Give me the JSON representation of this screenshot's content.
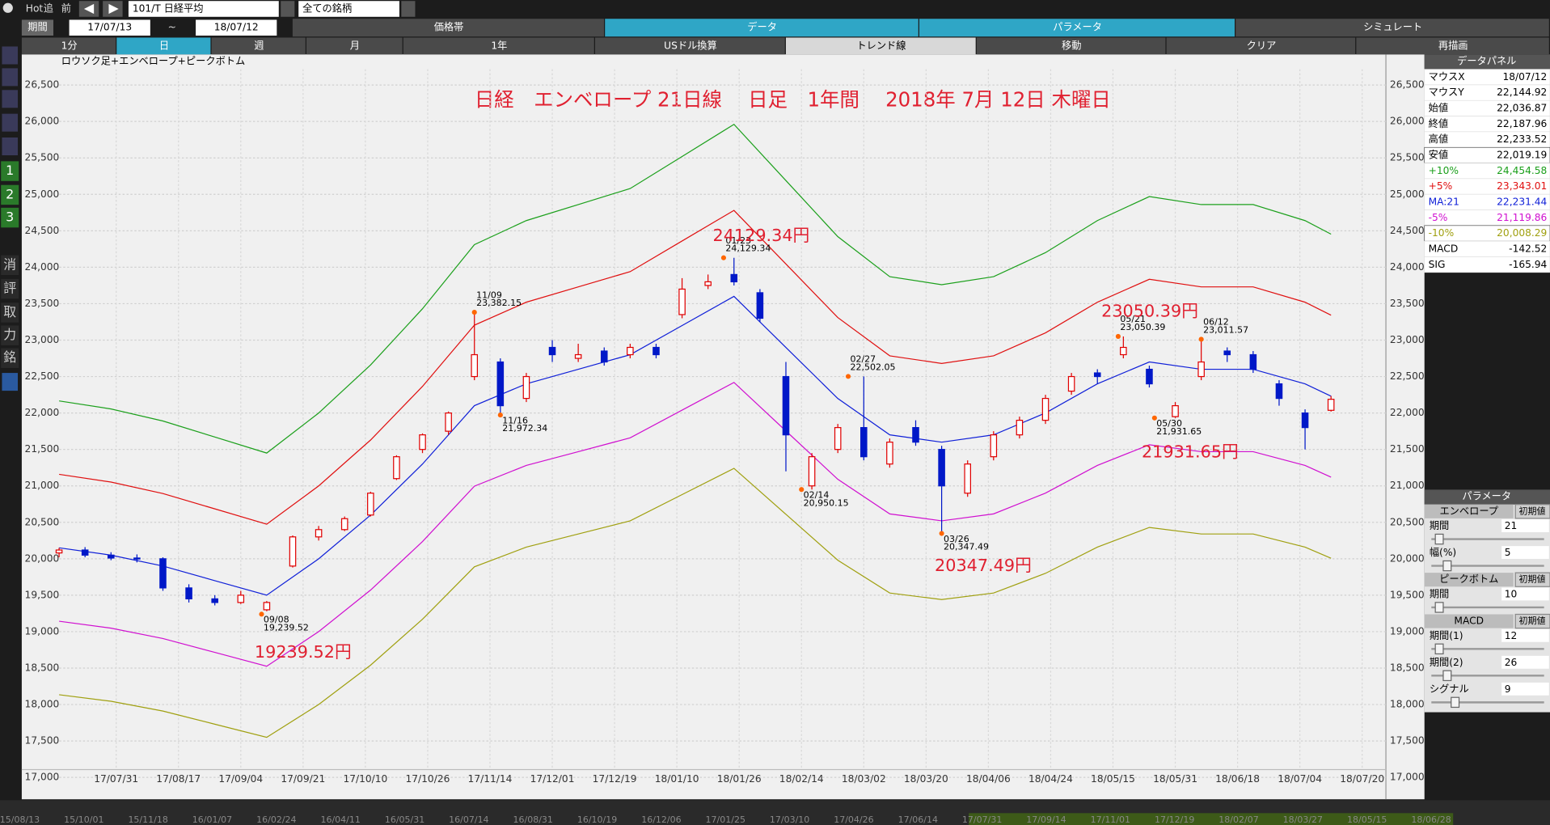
{
  "toolbar": {
    "hot": "Hot",
    "add": "追",
    "prev": "前",
    "code": "101/T 日経平均",
    "universe": "全ての銘柄",
    "period_label": "期間",
    "from": "17/07/13",
    "tilde": "~",
    "to": "18/07/12",
    "tabs": [
      "価格帯",
      "データ",
      "パラメータ",
      "シミュレート"
    ],
    "buttons": [
      "1分",
      "日",
      "週",
      "月",
      "1年",
      "USドル換算",
      "トレンド線",
      "移動",
      "クリア",
      "再描画"
    ]
  },
  "sidebar": [
    "1",
    "2",
    "3",
    "消",
    "評",
    "取",
    "力",
    "銘"
  ],
  "data_panel": {
    "title": "データパネル",
    "rows": [
      [
        "マウスX",
        "18/07/12"
      ],
      [
        "マウスY",
        "22,144.92"
      ],
      [
        "始値",
        "22,036.87"
      ],
      [
        "終値",
        "22,187.96"
      ],
      [
        "高値",
        "22,233.52"
      ],
      [
        "安値",
        "22,019.19"
      ],
      [
        "+10%",
        "24,454.58"
      ],
      [
        "+5%",
        "23,343.01"
      ],
      [
        "MA:21",
        "22,231.44"
      ],
      [
        "-5%",
        "21,119.86"
      ],
      [
        "-10%",
        "20,008.29"
      ],
      [
        "MACD",
        "-142.52"
      ],
      [
        "SIG",
        "-165.94"
      ]
    ]
  },
  "param_panel": {
    "title": "パラメータ",
    "sections": [
      {
        "name": "エンベロープ",
        "reset": "初期値",
        "params": [
          [
            "期間",
            "21"
          ],
          [
            "幅(%)",
            "5"
          ]
        ]
      },
      {
        "name": "ピークボトム",
        "reset": "初期値",
        "params": [
          [
            "期間",
            "10"
          ]
        ]
      },
      {
        "name": "MACD",
        "reset": "初期値",
        "params": [
          [
            "期間(1)",
            "12"
          ],
          [
            "期間(2)",
            "26"
          ],
          [
            "シグナル",
            "9"
          ]
        ]
      }
    ]
  },
  "navigator": {
    "dates": [
      "15/08/13",
      "15/10/01",
      "15/11/18",
      "16/01/07",
      "16/02/24",
      "16/04/11",
      "16/05/31",
      "16/07/14",
      "16/08/31",
      "16/10/19",
      "16/12/06",
      "17/01/25",
      "17/03/10",
      "17/04/26",
      "17/06/14",
      "17/07/31",
      "17/09/14",
      "17/11/01",
      "17/12/19",
      "18/02/07",
      "18/03/27",
      "18/05/15",
      "18/06/28"
    ]
  },
  "chart_data": {
    "type": "candlestick",
    "title": "日経　エンベロープ 21日線　 日足　1年間　 2018年 7月 12日 木曜日",
    "subtitle": "ロウソク足+エンベロープ+ピークボトム",
    "xlim": [
      -7,
      255
    ],
    "xticks": [
      {
        "value": 11,
        "label": "17/07/31"
      },
      {
        "value": 23,
        "label": "17/08/17"
      },
      {
        "value": 35,
        "label": "17/09/04"
      },
      {
        "value": 47,
        "label": "17/09/21"
      },
      {
        "value": 59,
        "label": "17/10/10"
      },
      {
        "value": 71,
        "label": "17/10/26"
      },
      {
        "value": 83,
        "label": "17/11/14"
      },
      {
        "value": 95,
        "label": "17/12/01"
      },
      {
        "value": 107,
        "label": "17/12/19"
      },
      {
        "value": 119,
        "label": "18/01/10"
      },
      {
        "value": 131,
        "label": "18/01/26"
      },
      {
        "value": 143,
        "label": "18/02/14"
      },
      {
        "value": 155,
        "label": "18/03/02"
      },
      {
        "value": 167,
        "label": "18/03/20"
      },
      {
        "value": 179,
        "label": "18/04/06"
      },
      {
        "value": 191,
        "label": "18/04/24"
      },
      {
        "value": 203,
        "label": "18/05/15"
      },
      {
        "value": 215,
        "label": "18/05/31"
      },
      {
        "value": 227,
        "label": "18/06/18"
      },
      {
        "value": 239,
        "label": "18/07/04"
      },
      {
        "value": 251,
        "label": "18/07/20"
      }
    ],
    "ylim": [
      16700,
      26920
    ],
    "yticks": [
      {
        "value": 17000,
        "label": "17,000"
      },
      {
        "value": 17500,
        "label": "17,500"
      },
      {
        "value": 18000,
        "label": "18,000"
      },
      {
        "value": 18500,
        "label": "18,500"
      },
      {
        "value": 19000,
        "label": "19,000"
      },
      {
        "value": 19500,
        "label": "19,500"
      },
      {
        "value": 20000,
        "label": "20,000"
      },
      {
        "value": 20500,
        "label": "20,500"
      },
      {
        "value": 21000,
        "label": "21,000"
      },
      {
        "value": 21500,
        "label": "21,500"
      },
      {
        "value": 22000,
        "label": "22,000"
      },
      {
        "value": 22500,
        "label": "22,500"
      },
      {
        "value": 23000,
        "label": "23,000"
      },
      {
        "value": 23500,
        "label": "23,500"
      },
      {
        "value": 24000,
        "label": "24,000"
      },
      {
        "value": 24500,
        "label": "24,500"
      },
      {
        "value": 25000,
        "label": "25,000"
      },
      {
        "value": 25500,
        "label": "25,500"
      },
      {
        "value": 26000,
        "label": "26,000"
      },
      {
        "value": 26500,
        "label": "26,500"
      }
    ],
    "grid": true,
    "up_color": "#e00000",
    "down_color": "#0018c8",
    "candle_x": [
      0,
      5,
      10,
      15,
      20,
      25,
      30,
      35,
      40,
      45,
      50,
      55,
      60,
      65,
      70,
      75,
      80,
      85,
      90,
      95,
      100,
      105,
      110,
      115,
      120,
      125,
      130,
      135,
      140,
      145,
      150,
      155,
      160,
      165,
      170,
      175,
      180,
      185,
      190,
      195,
      200,
      205,
      210,
      215,
      220,
      225,
      230,
      235,
      240,
      245
    ],
    "ohlc": [
      [
        20080,
        20150,
        20020,
        20120
      ],
      [
        20120,
        20160,
        20020,
        20050
      ],
      [
        20050,
        20090,
        19980,
        20010
      ],
      [
        20010,
        20060,
        19950,
        20000
      ],
      [
        20000,
        20020,
        19560,
        19600
      ],
      [
        19600,
        19650,
        19400,
        19450
      ],
      [
        19450,
        19500,
        19360,
        19400
      ],
      [
        19400,
        19560,
        19380,
        19500
      ],
      [
        19300,
        19420,
        19280,
        19400
      ],
      [
        19900,
        20320,
        19880,
        20300
      ],
      [
        20300,
        20450,
        20250,
        20400
      ],
      [
        20400,
        20580,
        20380,
        20550
      ],
      [
        20600,
        20920,
        20580,
        20900
      ],
      [
        21100,
        21420,
        21080,
        21400
      ],
      [
        21500,
        21720,
        21450,
        21700
      ],
      [
        21750,
        22020,
        21700,
        22000
      ],
      [
        22500,
        23382.15,
        22450,
        22800
      ],
      [
        22700,
        22750,
        21972.34,
        22100
      ],
      [
        22200,
        22550,
        22150,
        22500
      ],
      [
        22900,
        23000,
        22700,
        22800
      ],
      [
        22750,
        22950,
        22700,
        22800
      ],
      [
        22850,
        22900,
        22650,
        22700
      ],
      [
        22800,
        22950,
        22750,
        22900
      ],
      [
        22900,
        22950,
        22750,
        22800
      ],
      [
        23350,
        23850,
        23300,
        23700
      ],
      [
        23750,
        23900,
        23700,
        23800
      ],
      [
        23900,
        24129.34,
        23750,
        23800
      ],
      [
        23650,
        23700,
        23250,
        23300
      ],
      [
        22500,
        22700,
        21200,
        21700
      ],
      [
        21000,
        21450,
        20950.15,
        21400
      ],
      [
        21500,
        21850,
        21450,
        21800
      ],
      [
        21800,
        22502.05,
        21350,
        21400
      ],
      [
        21300,
        21650,
        21250,
        21600
      ],
      [
        21800,
        21900,
        21550,
        21600
      ],
      [
        21500,
        21550,
        20347.49,
        21000
      ],
      [
        20900,
        21350,
        20850,
        21300
      ],
      [
        21400,
        21750,
        21350,
        21700
      ],
      [
        21700,
        21950,
        21650,
        21900
      ],
      [
        21900,
        22250,
        21850,
        22200
      ],
      [
        22300,
        22550,
        22250,
        22500
      ],
      [
        22550,
        22600,
        22400,
        22500
      ],
      [
        22800,
        23050.39,
        22750,
        22900
      ],
      [
        22600,
        22650,
        22350,
        22400
      ],
      [
        21950,
        22150,
        21931.65,
        22100
      ],
      [
        22500,
        23011.57,
        22450,
        22700
      ],
      [
        22850,
        22900,
        22700,
        22800
      ],
      [
        22800,
        22850,
        22550,
        22600
      ],
      [
        22400,
        22450,
        22100,
        22200
      ],
      [
        22000,
        22050,
        21500,
        21800
      ],
      [
        22036.87,
        22233.52,
        22019.19,
        22187.96
      ]
    ],
    "line_x": [
      0,
      10,
      20,
      30,
      40,
      50,
      60,
      70,
      80,
      90,
      100,
      110,
      120,
      130,
      140,
      150,
      160,
      170,
      180,
      190,
      200,
      210,
      220,
      230,
      240,
      245
    ],
    "lines": [
      {
        "color": "#1ca01c",
        "values": [
          22165,
          22055,
          21890,
          21670,
          21450,
          22000,
          22660,
          23430,
          24310,
          24640,
          24860,
          25080,
          25520,
          25960,
          25190,
          24420,
          23870,
          23760,
          23870,
          24200,
          24640,
          24970,
          24860,
          24860,
          24640,
          24454
        ]
      },
      {
        "color": "#e01010",
        "values": [
          21158,
          21053,
          20895,
          20685,
          20475,
          21000,
          21630,
          22365,
          23205,
          23520,
          23730,
          23940,
          24360,
          24780,
          24045,
          23310,
          22785,
          22680,
          22785,
          23100,
          23520,
          23835,
          23730,
          23730,
          23520,
          23343
        ]
      },
      {
        "color": "#1020d8",
        "values": [
          20150,
          20050,
          19900,
          19700,
          19500,
          20000,
          20600,
          21300,
          22100,
          22400,
          22600,
          22800,
          23200,
          23600,
          22900,
          22200,
          21700,
          21600,
          21700,
          22000,
          22400,
          22700,
          22600,
          22600,
          22400,
          22231
        ]
      },
      {
        "color": "#d010d0",
        "values": [
          19143,
          19048,
          18905,
          18715,
          18525,
          19000,
          19570,
          20235,
          20995,
          21280,
          21470,
          21660,
          22040,
          22420,
          21755,
          21090,
          20615,
          20520,
          20615,
          20900,
          21280,
          21565,
          21470,
          21470,
          21280,
          21119
        ]
      },
      {
        "color": "#a0a010",
        "values": [
          18135,
          18045,
          17910,
          17730,
          17550,
          18000,
          18540,
          19170,
          19890,
          20160,
          20340,
          20520,
          20880,
          21240,
          20610,
          19980,
          19530,
          19440,
          19530,
          19800,
          20160,
          20430,
          20340,
          20340,
          20160,
          20008
        ]
      }
    ],
    "peaks": [
      {
        "x": 39,
        "date": "09/08",
        "value": 19239.52,
        "value_label": "19,239.52",
        "callout": "19239.52円"
      },
      {
        "x": 80,
        "date": "11/09",
        "value": 23382.15,
        "value_label": "23,382.15"
      },
      {
        "x": 85,
        "date": "11/16",
        "value": 21972.34,
        "value_label": "21,972.34"
      },
      {
        "x": 128,
        "date": "01/23",
        "value": 24129.34,
        "value_label": "24,129.34",
        "callout": "24129.34円"
      },
      {
        "x": 143,
        "date": "02/14",
        "value": 20950.15,
        "value_label": "20,950.15"
      },
      {
        "x": 152,
        "date": "02/27",
        "value": 22502.05,
        "value_label": "22,502.05"
      },
      {
        "x": 170,
        "date": "03/26",
        "value": 20347.49,
        "value_label": "20,347.49",
        "callout": "20347.49円"
      },
      {
        "x": 204,
        "date": "05/21",
        "value": 23050.39,
        "value_label": "23,050.39",
        "callout": "23050.39円"
      },
      {
        "x": 211,
        "date": "05/30",
        "value": 21931.65,
        "value_label": "21,931.65",
        "callout": "21931.65円"
      },
      {
        "x": 220,
        "date": "06/12",
        "value": 23011.57,
        "value_label": "23,011.57"
      }
    ]
  }
}
